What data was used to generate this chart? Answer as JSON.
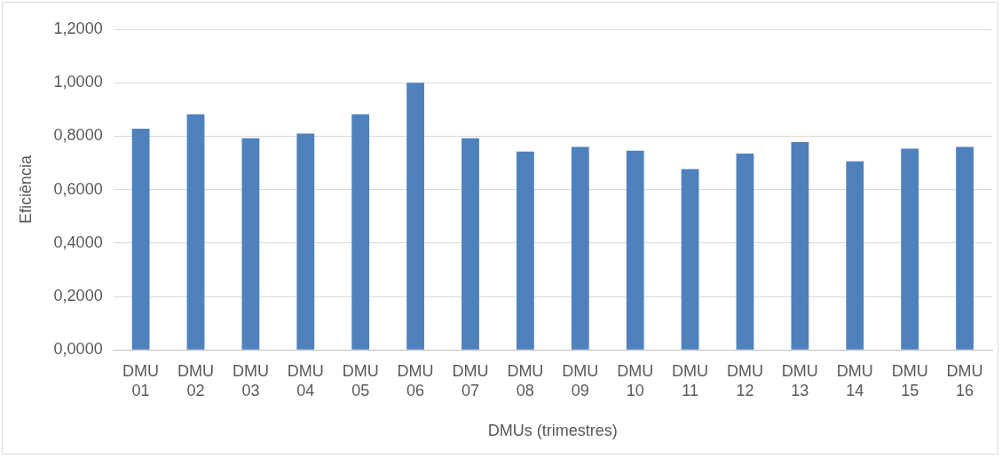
{
  "chart_data": {
    "type": "bar",
    "xlabel": "DMUs (trimestres)",
    "ylabel": "Eficiência",
    "categories": [
      "DMU 01",
      "DMU 02",
      "DMU 03",
      "DMU 04",
      "DMU 05",
      "DMU 06",
      "DMU 07",
      "DMU 08",
      "DMU 09",
      "DMU 10",
      "DMU 11",
      "DMU 12",
      "DMU 13",
      "DMU 14",
      "DMU 15",
      "DMU 16"
    ],
    "values": [
      0.828,
      0.882,
      0.792,
      0.81,
      0.882,
      1.0,
      0.792,
      0.742,
      0.76,
      0.746,
      0.677,
      0.735,
      0.778,
      0.706,
      0.753,
      0.76
    ],
    "color": "#4f81bd",
    "ylim": [
      0,
      1.2
    ],
    "yticks": [
      {
        "value": 0,
        "label": "0,0000"
      },
      {
        "value": 0.2,
        "label": "0,2000"
      },
      {
        "value": 0.4,
        "label": "0,4000"
      },
      {
        "value": 0.6,
        "label": "0,6000"
      },
      {
        "value": 0.8,
        "label": "0,8000"
      },
      {
        "value": 1.0,
        "label": "1,0000"
      },
      {
        "value": 1.2,
        "label": "1,2000"
      }
    ],
    "grid": "y",
    "legend": false
  }
}
